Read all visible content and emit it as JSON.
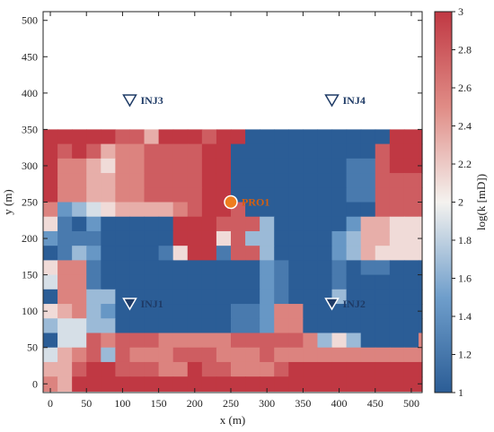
{
  "chart_data": {
    "type": "heatmap",
    "xlabel": "x (m)",
    "ylabel": "y (m)",
    "colorbar_label": "log(k [mD])",
    "xlim": [
      -10,
      515
    ],
    "ylim": [
      -12,
      512
    ],
    "x_ticks": [
      0,
      50,
      100,
      150,
      200,
      250,
      300,
      350,
      400,
      450,
      500
    ],
    "y_ticks": [
      0,
      50,
      100,
      150,
      200,
      250,
      300,
      350,
      400,
      450,
      500
    ],
    "colorbar_range": [
      1,
      3
    ],
    "colorbar_ticks": [
      1,
      1.2,
      1.4,
      1.6,
      1.8,
      2,
      2.2,
      2.4,
      2.6,
      2.8,
      3
    ],
    "colorbar_tick_labels": [
      "1",
      "1.2",
      "1.4",
      "1.6",
      "1.8",
      "2",
      "2.2",
      "2.4",
      "2.6",
      "2.8",
      "3"
    ],
    "colormap": [
      "#2b5d96",
      "#6f9ecb",
      "#f4f2ef",
      "#e08c86",
      "#c03843"
    ],
    "grid": {
      "cell_size": 20,
      "x0": 0,
      "y0": 0,
      "rows_top_to_bottom": [
        "99999886999899000000000099910996",
        "98986778888990000000000899910990",
        "97765778888990000000011899911111",
        "97766778888990000000011888811111",
        "97766778888990000000011888811111",
        "72345666678998000000000888811111",
        "51020000099988830000026655551119",
        "21110000099958330000236655559119",
        "01320000159918830000236555559118",
        "57710000000000021000101100077877",
        "47710000000000021000100000077778",
        "07733000000000021000300000077788",
        "56732000000001127700000000078658",
        "34433000000001127700000000078656",
        "04487888777778888873530000777777",
        "46783877788877787777777777777777",
        "66899888779887778999999999999999",
        "76999999999999999999999999999999"
      ]
    },
    "wells": [
      {
        "name": "INJ3",
        "type": "injector",
        "x": 110,
        "y": 390
      },
      {
        "name": "INJ4",
        "type": "injector",
        "x": 390,
        "y": 390
      },
      {
        "name": "PRO1",
        "type": "producer",
        "x": 250,
        "y": 250
      },
      {
        "name": "INJ1",
        "type": "injector",
        "x": 110,
        "y": 110
      },
      {
        "name": "INJ2",
        "type": "injector",
        "x": 390,
        "y": 110
      }
    ],
    "colors": {
      "injector_fill": "#ffffff",
      "injector_stroke": "#1f3b66",
      "injector_label": "#1f3b66",
      "producer_fill": "#ee7d1f",
      "producer_stroke": "#ffffff",
      "producer_label": "#d65f0f"
    }
  }
}
